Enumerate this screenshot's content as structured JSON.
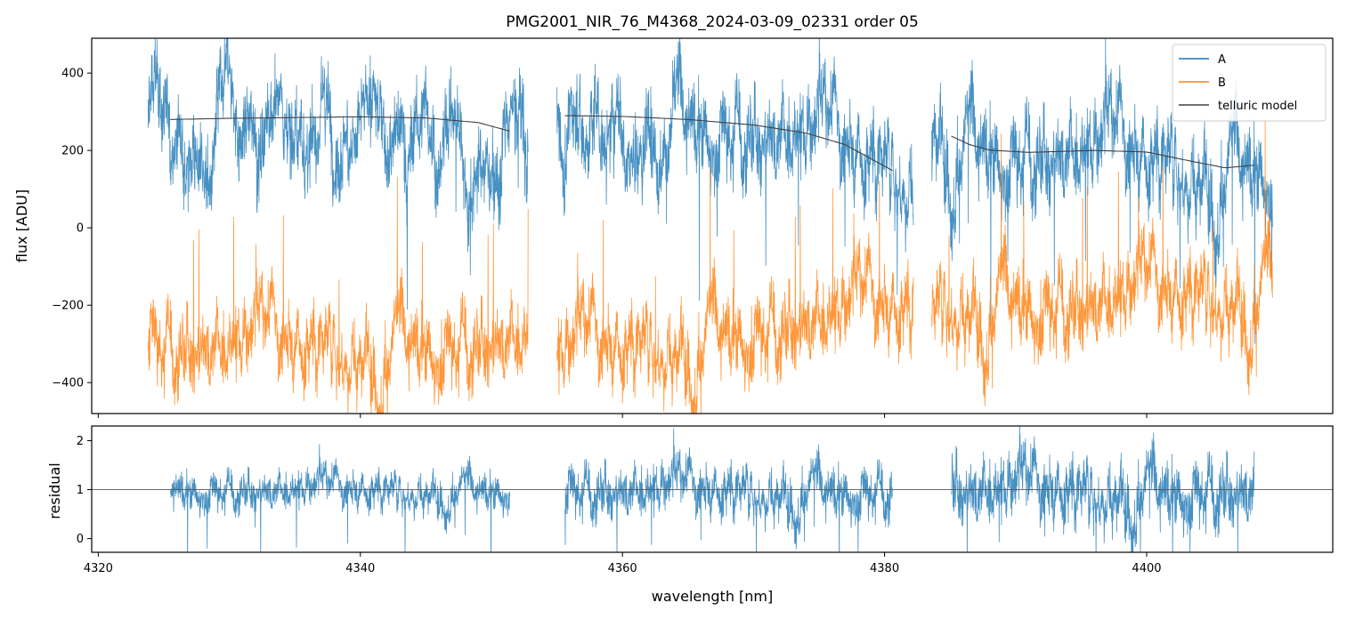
{
  "chart_data": [
    {
      "panel": "spectrum",
      "type": "line",
      "title": "PMG2001_NIR_76_M4368_2024-03-09_02331  order 05",
      "xlabel": "",
      "ylabel": "flux [ADU]",
      "xlim": [
        4319.5,
        4414.2
      ],
      "ylim": [
        -480,
        490
      ],
      "yticks": [
        -400,
        -200,
        0,
        200,
        400
      ],
      "ytick_labels": [
        "−400",
        "−200",
        "0",
        "200",
        "400"
      ],
      "xticks": [
        4320,
        4340,
        4360,
        4380,
        4400
      ],
      "xtick_labels": [
        "",
        "",
        "",
        "",
        ""
      ],
      "legend": {
        "location": "top-right",
        "entries": [
          "A",
          "B",
          "telluric model"
        ]
      },
      "segments": [
        [
          4323.8,
          4352.8
        ],
        [
          4355.0,
          4382.2
        ],
        [
          4383.6,
          4409.6
        ]
      ],
      "series": [
        {
          "name": "A",
          "color": "#1f77b4",
          "kind": "noisy",
          "trend": [
            [
              4323.8,
              280
            ],
            [
              4340,
              285
            ],
            [
              4352.8,
              250
            ],
            [
              4355.0,
              290
            ],
            [
              4365,
              278
            ],
            [
              4375,
              230
            ],
            [
              4382.2,
              140
            ],
            [
              4383.6,
              230
            ],
            [
              4390,
              200
            ],
            [
              4397,
              198
            ],
            [
              4405,
              160
            ],
            [
              4409.6,
              165
            ]
          ],
          "noise": 85
        },
        {
          "name": "B",
          "color": "#ff7f0e",
          "kind": "noisy",
          "trend": [
            [
              4323.8,
              -300
            ],
            [
              4340,
              -300
            ],
            [
              4352.8,
              -280
            ],
            [
              4355.0,
              -330
            ],
            [
              4365,
              -280
            ],
            [
              4375,
              -230
            ],
            [
              4382.2,
              -200
            ],
            [
              4383.6,
              -180
            ],
            [
              4395,
              -190
            ],
            [
              4409.6,
              -150
            ]
          ],
          "noise": 75
        },
        {
          "name": "telluric model",
          "color": "#404040",
          "kind": "smooth",
          "pieces": [
            [
              [
                4325.5,
                280
              ],
              [
                4330,
                283
              ],
              [
                4335,
                285
              ],
              [
                4340,
                287
              ],
              [
                4345,
                284
              ],
              [
                4349,
                272
              ],
              [
                4351.4,
                250
              ]
            ],
            [
              [
                4355.6,
                290
              ],
              [
                4360,
                288
              ],
              [
                4365,
                280
              ],
              [
                4370,
                266
              ],
              [
                4374,
                245
              ],
              [
                4377,
                215
              ],
              [
                4380.6,
                148
              ]
            ],
            [
              [
                4385.1,
                237
              ],
              [
                4386.5,
                215
              ],
              [
                4388,
                201
              ],
              [
                4391,
                195
              ],
              [
                4396,
                200
              ],
              [
                4400,
                196
              ],
              [
                4403,
                175
              ],
              [
                4406,
                155
              ],
              [
                4408.2,
                162
              ]
            ]
          ]
        }
      ]
    },
    {
      "panel": "residual",
      "type": "line",
      "title": "",
      "xlabel": "wavelength [nm]",
      "ylabel": "residual",
      "xlim": [
        4319.5,
        4414.2
      ],
      "ylim": [
        -0.28,
        2.3
      ],
      "yticks": [
        0,
        1,
        2
      ],
      "ytick_labels": [
        "0",
        "1",
        "2"
      ],
      "xticks": [
        4320,
        4340,
        4360,
        4380,
        4400
      ],
      "xtick_labels": [
        "4320",
        "4340",
        "4360",
        "4380",
        "4400"
      ],
      "hline": 1,
      "segments": [
        [
          4325.5,
          4351.4
        ],
        [
          4355.6,
          4380.6
        ],
        [
          4385.1,
          4408.2
        ]
      ],
      "series": [
        {
          "name": "residual",
          "color": "#1f77b4",
          "kind": "noisy",
          "trend_value": 1.0,
          "noise": 0.38
        }
      ]
    }
  ]
}
